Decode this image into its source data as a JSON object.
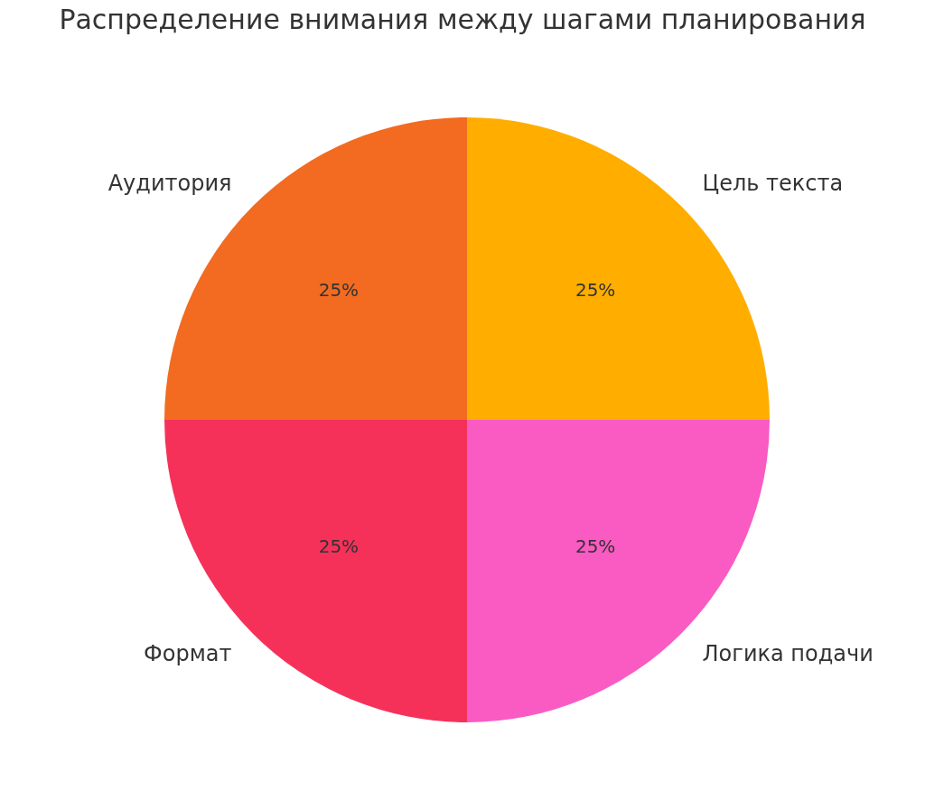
{
  "chart_data": {
    "type": "pie",
    "title": "Распределение внимания между шагами планирования",
    "categories": [
      "Цель текста",
      "Логика подачи",
      "Формат",
      "Аудитория"
    ],
    "values": [
      25,
      25,
      25,
      25
    ],
    "colors": [
      "#ffae00",
      "#f95bc2",
      "#f5315a",
      "#f26b21"
    ],
    "value_labels": [
      "25%",
      "25%",
      "25%",
      "25%"
    ],
    "legend": false
  }
}
